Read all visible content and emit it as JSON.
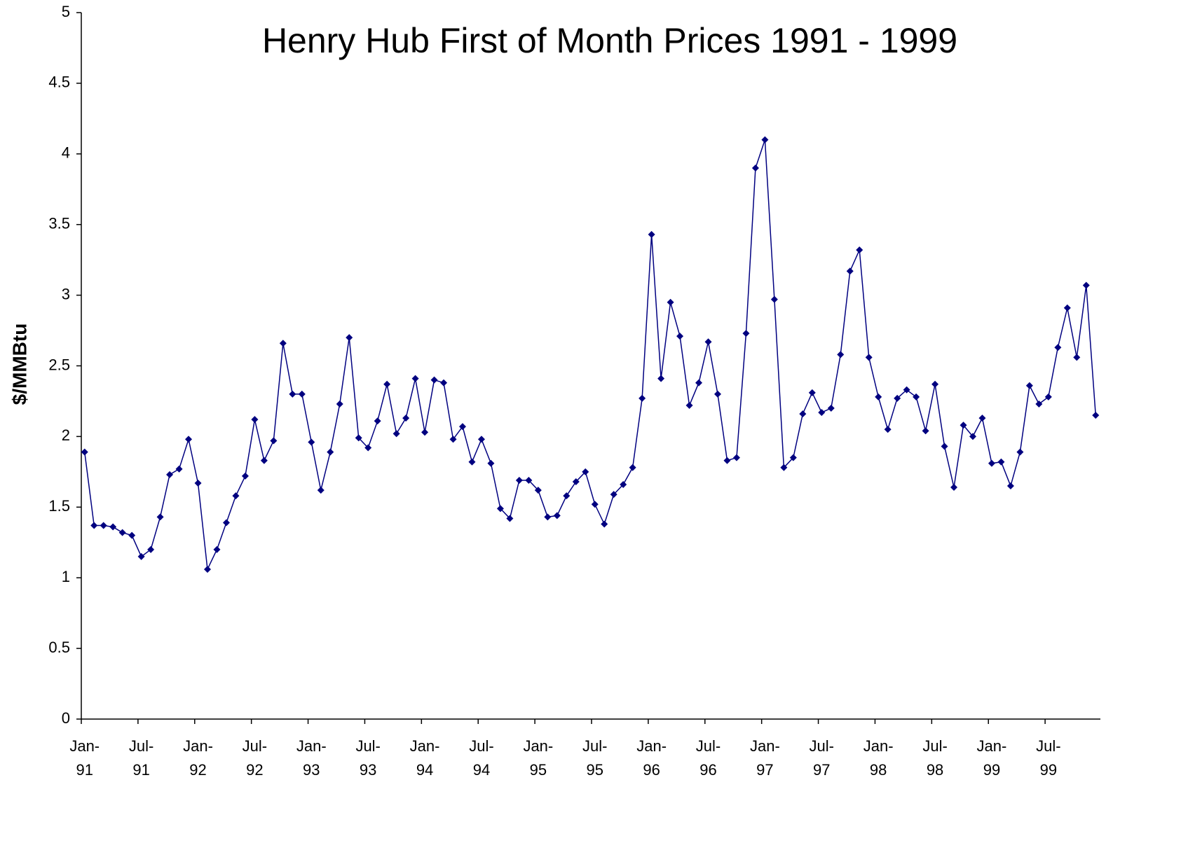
{
  "chart_data": {
    "type": "line",
    "title": "Henry Hub First of Month Prices 1991 - 1999",
    "y_label": "$/MMBtu",
    "categories": [
      "Jan- 91",
      null,
      null,
      null,
      null,
      null,
      "Jul- 91",
      null,
      null,
      null,
      null,
      null,
      "Jan- 92",
      null,
      null,
      null,
      null,
      null,
      "Jul- 92",
      null,
      null,
      null,
      null,
      null,
      "Jan- 93",
      null,
      null,
      null,
      null,
      null,
      "Jul- 93",
      null,
      null,
      null,
      null,
      null,
      "Jan- 94",
      null,
      null,
      null,
      null,
      null,
      "Jul- 94",
      null,
      null,
      null,
      null,
      null,
      "Jan- 95",
      null,
      null,
      null,
      null,
      null,
      "Jul- 95",
      null,
      null,
      null,
      null,
      null,
      "Jan- 96",
      null,
      null,
      null,
      null,
      null,
      "Jul- 96",
      null,
      null,
      null,
      null,
      null,
      "Jan- 97",
      null,
      null,
      null,
      null,
      null,
      "Jul- 97",
      null,
      null,
      null,
      null,
      null,
      "Jan- 98",
      null,
      null,
      null,
      null,
      null,
      "Jul- 98",
      null,
      null,
      null,
      null,
      null,
      "Jan- 99",
      null,
      null,
      null,
      null,
      null,
      "Jul- 99",
      null,
      null,
      null,
      null,
      null
    ],
    "series": [
      {
        "name": "Henry Hub",
        "color": "#000080",
        "values": [
          1.89,
          1.37,
          1.37,
          1.36,
          1.32,
          1.3,
          1.15,
          1.2,
          1.43,
          1.73,
          1.77,
          1.98,
          1.67,
          1.06,
          1.2,
          1.39,
          1.58,
          1.72,
          2.12,
          1.83,
          1.97,
          2.66,
          2.3,
          2.3,
          1.96,
          1.62,
          1.89,
          2.23,
          2.7,
          1.99,
          1.92,
          2.11,
          2.37,
          2.02,
          2.13,
          2.41,
          2.03,
          2.4,
          2.38,
          1.98,
          2.07,
          1.82,
          1.98,
          1.81,
          1.49,
          1.42,
          1.69,
          1.69,
          1.62,
          1.43,
          1.44,
          1.58,
          1.68,
          1.75,
          1.52,
          1.38,
          1.59,
          1.66,
          1.78,
          2.27,
          3.43,
          2.41,
          2.95,
          2.71,
          2.22,
          2.38,
          2.67,
          2.3,
          1.83,
          1.85,
          2.73,
          3.9,
          4.1,
          2.97,
          1.78,
          1.85,
          2.16,
          2.31,
          2.17,
          2.2,
          2.58,
          3.17,
          3.32,
          2.56,
          2.28,
          2.05,
          2.27,
          2.33,
          2.28,
          2.04,
          2.37,
          1.93,
          1.64,
          2.08,
          2.0,
          2.13,
          1.81,
          1.82,
          1.65,
          1.89,
          2.36,
          2.23,
          2.28,
          2.63,
          2.91,
          2.56,
          3.07,
          2.15
        ]
      }
    ],
    "ylim": [
      0,
      5
    ],
    "yticks": [
      0,
      0.5,
      1,
      1.5,
      2,
      2.5,
      3,
      3.5,
      4,
      4.5,
      5
    ],
    "grid": false
  }
}
